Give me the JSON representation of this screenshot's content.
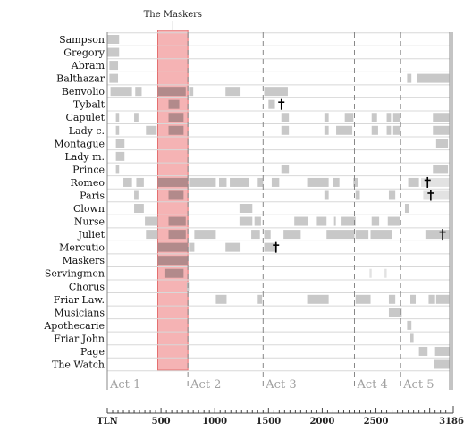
{
  "chart_data": {
    "type": "bar",
    "title": "The Maskers",
    "characters": [
      "Sampson",
      "Gregory",
      "Abram",
      "Balthazar",
      "Benvolio",
      "Tybalt",
      "Capulet",
      "Lady c.",
      "Montague",
      "Lady m.",
      "Prince",
      "Romeo",
      "Paris",
      "Clown",
      "Nurse",
      "Juliet",
      "Mercutio",
      "Maskers",
      "Servingmen",
      "Chorus",
      "Friar Law.",
      "Musicians",
      "Apothecarie",
      "Friar John",
      "Page",
      "The Watch"
    ],
    "x_range": [
      0,
      3186
    ],
    "x_start_label": "TLN",
    "x_end_label": "3186",
    "ticks": [
      500,
      1000,
      1500,
      2000,
      2500
    ],
    "highlight": {
      "label": "The Maskers",
      "start": 470,
      "end": 750,
      "color": "#f4a6a8"
    },
    "acts": [
      {
        "label": "Act 1",
        "start": 0
      },
      {
        "label": "Act 2",
        "start": 750
      },
      {
        "label": "Act 3",
        "start": 1450
      },
      {
        "label": "Act 4",
        "start": 2300
      },
      {
        "label": "Act 5",
        "start": 2730
      }
    ],
    "bar_color": "#c8c8c8",
    "highlight_bar_color": "#b28a8b",
    "light_bar_color": "#e2e2e2",
    "segments": {
      "Sampson": [
        [
          0,
          110
        ]
      ],
      "Gregory": [
        [
          0,
          110
        ]
      ],
      "Abram": [
        [
          20,
          100
        ]
      ],
      "Balthazar": [
        [
          20,
          100
        ],
        [
          2790,
          2830
        ],
        [
          2880,
          3180
        ]
      ],
      "Benvolio": [
        [
          30,
          230
        ],
        [
          260,
          320
        ],
        [
          470,
          730
        ],
        [
          760,
          800
        ],
        [
          1100,
          1240
        ],
        [
          1460,
          1680
        ]
      ],
      "Tybalt": [
        [
          570,
          670
        ],
        [
          1500,
          1560
        ]
      ],
      "Capulet": [
        [
          80,
          110
        ],
        [
          250,
          290
        ],
        [
          570,
          710
        ],
        [
          1620,
          1690
        ],
        [
          2020,
          2060
        ],
        [
          2210,
          2290
        ],
        [
          2460,
          2510
        ],
        [
          2600,
          2640
        ],
        [
          2660,
          2730
        ],
        [
          3030,
          3180
        ]
      ],
      "Lady c.": [
        [
          80,
          110
        ],
        [
          360,
          460
        ],
        [
          570,
          710
        ],
        [
          1620,
          1690
        ],
        [
          2020,
          2060
        ],
        [
          2130,
          2280
        ],
        [
          2460,
          2520
        ],
        [
          2600,
          2640
        ],
        [
          2660,
          2730
        ],
        [
          3030,
          3180
        ]
      ],
      "Montague": [
        [
          80,
          160
        ],
        [
          3060,
          3170
        ]
      ],
      "Lady m.": [
        [
          80,
          160
        ]
      ],
      "Prince": [
        [
          80,
          110
        ],
        [
          1620,
          1690
        ],
        [
          3030,
          3170
        ]
      ],
      "Romeo": [
        [
          150,
          230
        ],
        [
          270,
          340
        ],
        [
          470,
          750
        ],
        [
          760,
          1010
        ],
        [
          1040,
          1110
        ],
        [
          1140,
          1320
        ],
        [
          1400,
          1450
        ],
        [
          1530,
          1600
        ],
        [
          1860,
          2060
        ],
        [
          2100,
          2160
        ],
        [
          2290,
          2330
        ],
        [
          2800,
          2900
        ],
        [
          2920,
          3180
        ]
      ],
      "Paris": [
        [
          250,
          290
        ],
        [
          570,
          710
        ],
        [
          2020,
          2060
        ],
        [
          2310,
          2350
        ],
        [
          2620,
          2680
        ],
        [
          2940,
          3180
        ]
      ],
      "Clown": [
        [
          250,
          340
        ],
        [
          1230,
          1350
        ],
        [
          2770,
          2810
        ]
      ],
      "Nurse": [
        [
          350,
          470
        ],
        [
          570,
          730
        ],
        [
          1230,
          1350
        ],
        [
          1370,
          1430
        ],
        [
          1740,
          1870
        ],
        [
          1950,
          2040
        ],
        [
          2110,
          2120
        ],
        [
          2180,
          2310
        ],
        [
          2460,
          2530
        ],
        [
          2610,
          2720
        ]
      ],
      "Juliet": [
        [
          360,
          470
        ],
        [
          570,
          730
        ],
        [
          810,
          1010
        ],
        [
          1340,
          1420
        ],
        [
          1460,
          1520
        ],
        [
          1640,
          1800
        ],
        [
          2040,
          2300
        ],
        [
          2310,
          2430
        ],
        [
          2450,
          2650
        ],
        [
          2960,
          3180
        ]
      ],
      "Mercutio": [
        [
          470,
          750
        ],
        [
          760,
          810
        ],
        [
          1100,
          1240
        ],
        [
          1460,
          1580
        ]
      ],
      "Maskers": [
        [
          470,
          750
        ]
      ],
      "Servingmen": [
        [
          540,
          710
        ]
      ],
      "Chorus": [
        [
          740,
          760
        ]
      ],
      "Friar Law.": [
        [
          1010,
          1110
        ],
        [
          1400,
          1440
        ],
        [
          1860,
          2060
        ],
        [
          2310,
          2450
        ],
        [
          2620,
          2680
        ],
        [
          2820,
          2870
        ],
        [
          2990,
          3050
        ],
        [
          3060,
          3180
        ]
      ],
      "Musicians": [
        [
          2620,
          2740
        ]
      ],
      "Apothecarie": [
        [
          2790,
          2830
        ]
      ],
      "Friar John": [
        [
          2820,
          2850
        ]
      ],
      "Page": [
        [
          2900,
          2980
        ],
        [
          3050,
          3190
        ]
      ],
      "The Watch": [
        [
          3040,
          3190
        ]
      ]
    },
    "light_segments": {
      "Romeo": [
        [
          2920,
          3180
        ]
      ],
      "Paris": [
        [
          2940,
          3180
        ]
      ],
      "Servingmen": [
        [
          2440,
          2460
        ],
        [
          2580,
          2600
        ]
      ]
    },
    "deaths": {
      "Tybalt": 1620,
      "Mercutio": 1570,
      "Romeo": 2980,
      "Paris": 3010,
      "Juliet": 3120
    }
  }
}
